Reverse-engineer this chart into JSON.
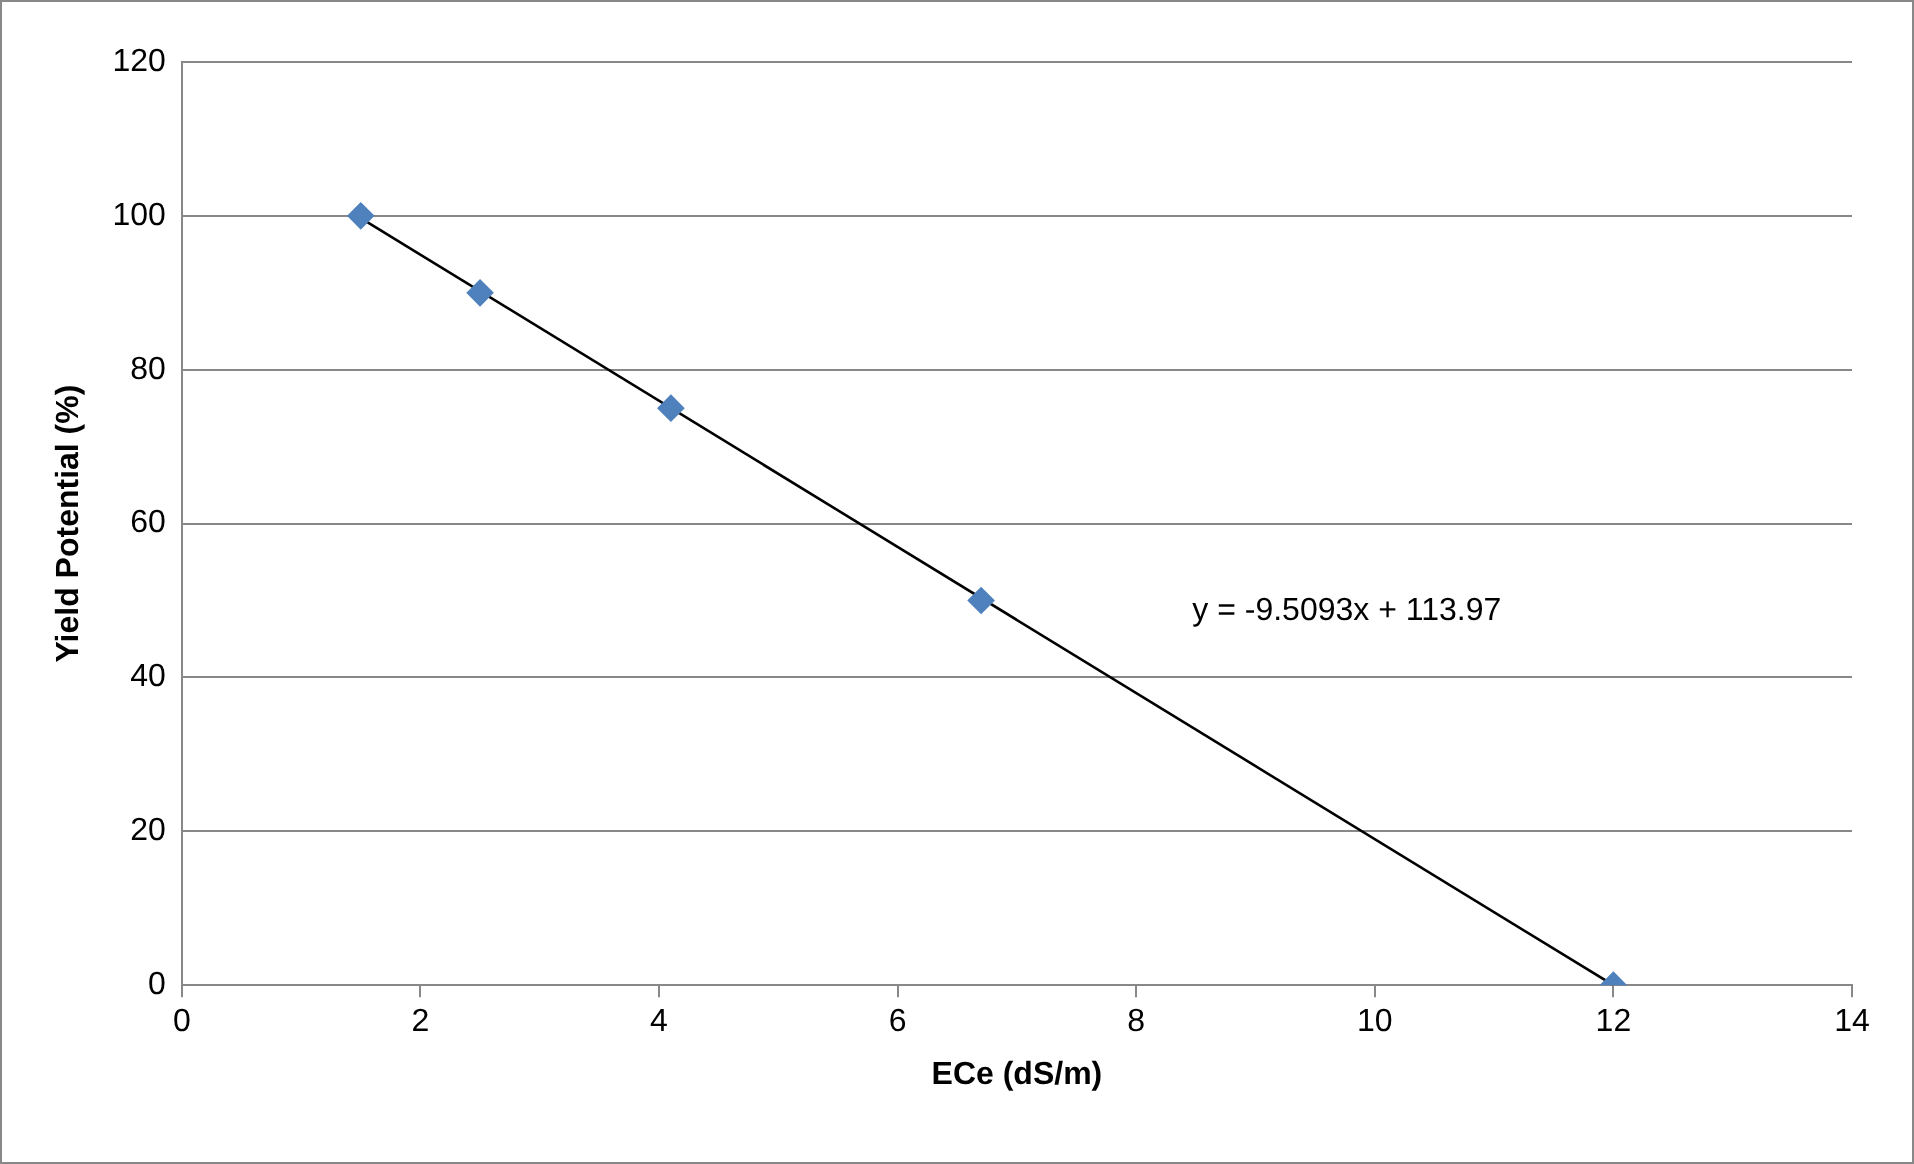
{
  "chart_data": {
    "type": "scatter",
    "xlabel": "ECe (dS/m)",
    "ylabel": "Yield Potential (%)",
    "series": [
      {
        "type": "scatter",
        "color": "#4f81bd",
        "x": [
          1.5,
          2.5,
          4.1,
          6.7,
          12
        ],
        "values": [
          100,
          90,
          75,
          50,
          0
        ],
        "marker": "diamond"
      },
      {
        "type": "line",
        "color": "#000000",
        "x": [
          1.5,
          12
        ],
        "values": [
          99.7,
          0
        ],
        "marker": "none",
        "line_style": "solid"
      }
    ],
    "annotations": [
      "y = -9.5093x + 113.97"
    ],
    "xlim": [
      0,
      14
    ],
    "xticks": [
      0,
      2,
      4,
      6,
      8,
      10,
      12,
      14
    ],
    "ylim": [
      0,
      120
    ],
    "yticks": [
      0,
      20,
      40,
      60,
      80,
      100,
      120
    ],
    "grid": "y",
    "legend": false
  }
}
